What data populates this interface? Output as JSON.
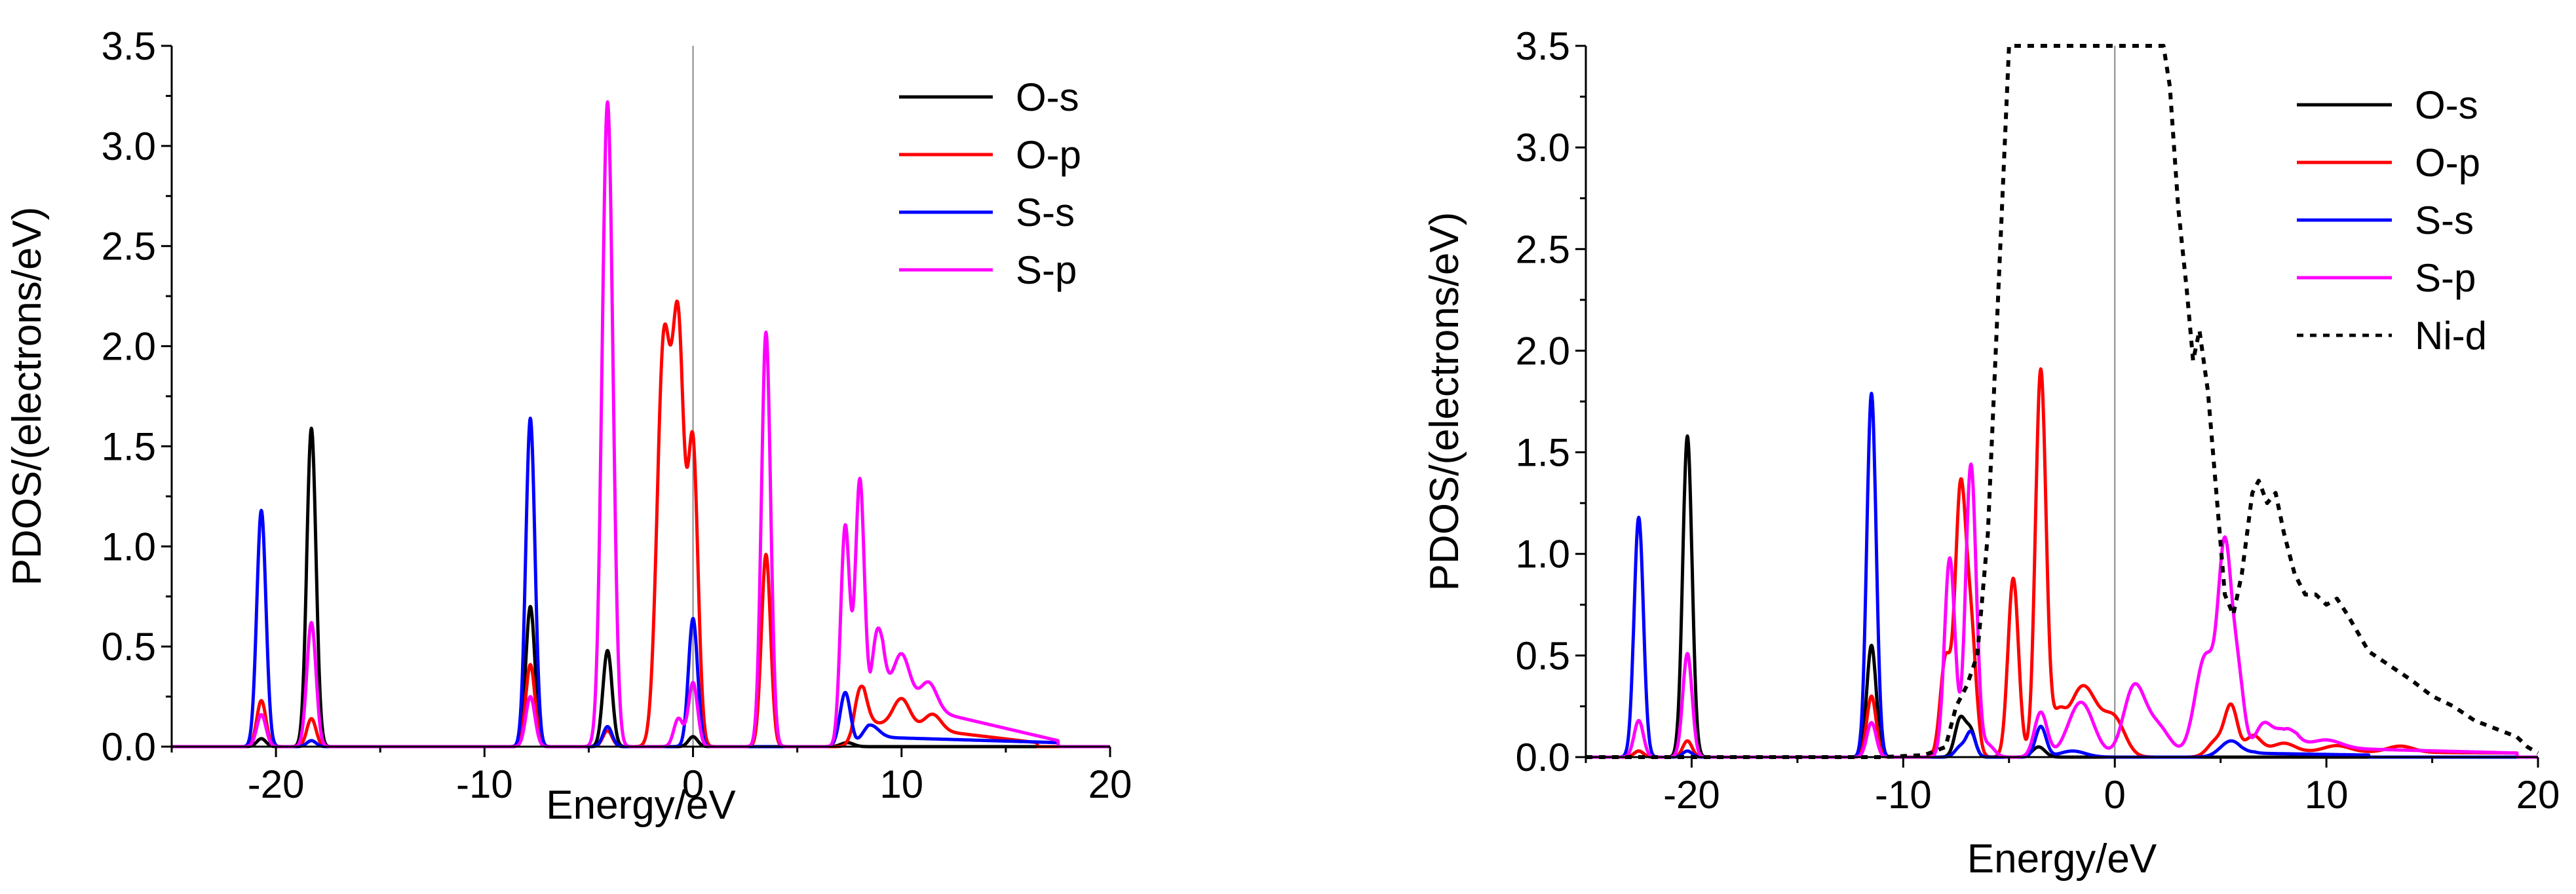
{
  "chart_data": [
    {
      "type": "line",
      "panel": "left",
      "title": "",
      "xlabel": "Energy/eV",
      "ylabel": "PDOS/(electrons/eV)",
      "xlim": [
        -25,
        20
      ],
      "ylim": [
        0,
        3.5
      ],
      "xticks": [
        -20,
        -10,
        0,
        10,
        20
      ],
      "xtick_labels": [
        "-20",
        "-10",
        "0",
        "10",
        "20"
      ],
      "yticks": [
        0,
        0.5,
        1,
        1.5,
        2,
        2.5,
        3,
        3.5
      ],
      "ytick_labels": [
        "0.0",
        "0.5",
        "1.0",
        "1.5",
        "2.0",
        "2.5",
        "3.0",
        "3.5"
      ],
      "fermi_line_x": 0,
      "legend_position": "top-right",
      "series": [
        {
          "name": "O-s",
          "color": "#000000",
          "dash": "solid",
          "peaks": [
            [
              -20.7,
              0.04,
              0.22
            ],
            [
              -18.3,
              1.59,
              0.22
            ],
            [
              -7.8,
              0.7,
              0.22
            ],
            [
              -4.1,
              0.48,
              0.22
            ],
            [
              0.0,
              0.05,
              0.22
            ],
            [
              7.4,
              0.02,
              0.3
            ]
          ],
          "tails": []
        },
        {
          "name": "O-p",
          "color": "#ff0000",
          "dash": "solid",
          "peaks": [
            [
              -20.7,
              0.23,
              0.22
            ],
            [
              -18.3,
              0.14,
              0.22
            ],
            [
              -7.8,
              0.41,
              0.22
            ],
            [
              -4.1,
              0.08,
              0.22
            ],
            [
              -1.4,
              2.0,
              0.32
            ],
            [
              -0.7,
              1.99,
              0.28
            ],
            [
              0.0,
              1.47,
              0.24
            ],
            [
              3.5,
              0.96,
              0.22
            ],
            [
              8.0,
              0.21,
              0.3
            ],
            [
              10.0,
              0.14,
              0.4
            ],
            [
              11.5,
              0.08,
              0.4
            ]
          ],
          "tails": [
            [
              7.6,
              16.5,
              0.13,
              0.02
            ]
          ]
        },
        {
          "name": "S-s",
          "color": "#0000ff",
          "dash": "solid",
          "peaks": [
            [
              -20.7,
              1.18,
              0.22
            ],
            [
              -18.3,
              0.03,
              0.22
            ],
            [
              -7.8,
              1.64,
              0.22
            ],
            [
              -4.1,
              0.1,
              0.22
            ],
            [
              0.0,
              0.64,
              0.22
            ],
            [
              7.3,
              0.27,
              0.25
            ],
            [
              8.5,
              0.06,
              0.4
            ]
          ],
          "tails": [
            [
              7.8,
              17.5,
              0.05,
              0.02
            ]
          ]
        },
        {
          "name": "S-p",
          "color": "#ff00ff",
          "dash": "solid",
          "peaks": [
            [
              -20.7,
              0.16,
              0.22
            ],
            [
              -18.3,
              0.62,
              0.22
            ],
            [
              -7.8,
              0.25,
              0.22
            ],
            [
              -4.1,
              3.22,
              0.26
            ],
            [
              -0.7,
              0.14,
              0.22
            ],
            [
              0.0,
              0.32,
              0.22
            ],
            [
              3.5,
              2.07,
              0.22
            ],
            [
              7.3,
              1.1,
              0.22
            ],
            [
              8.0,
              1.32,
              0.22
            ],
            [
              8.8,
              0.45,
              0.3
            ],
            [
              10.0,
              0.25,
              0.4
            ],
            [
              11.3,
              0.14,
              0.4
            ]
          ],
          "tails": [
            [
              8.5,
              17.5,
              0.25,
              0.03
            ]
          ]
        }
      ]
    },
    {
      "type": "line",
      "panel": "right",
      "title": "",
      "xlabel": "Energy/eV",
      "ylabel": "PDOS/(electrons/eV)",
      "xlim": [
        -25,
        20
      ],
      "ylim": [
        0,
        3.5
      ],
      "xticks": [
        -20,
        -10,
        0,
        10,
        20
      ],
      "xtick_labels": [
        "-20",
        "-10",
        "0",
        "10",
        "20"
      ],
      "yticks": [
        0,
        0.5,
        1,
        1.5,
        2,
        2.5,
        3,
        3.5
      ],
      "ytick_labels": [
        "0.0",
        "0.5",
        "1.0",
        "1.5",
        "2.0",
        "2.5",
        "3.0",
        "3.5"
      ],
      "fermi_line_x": 0,
      "legend_position": "top-right",
      "series": [
        {
          "name": "O-s",
          "color": "#000000",
          "dash": "solid",
          "peaks": [
            [
              -22.5,
              0.03,
              0.22
            ],
            [
              -20.2,
              1.58,
              0.22
            ],
            [
              -11.5,
              0.55,
              0.22
            ],
            [
              -7.3,
              0.19,
              0.25
            ],
            [
              -6.8,
              0.12,
              0.22
            ],
            [
              -3.6,
              0.05,
              0.3
            ]
          ],
          "tails": []
        },
        {
          "name": "O-p",
          "color": "#ff0000",
          "dash": "solid",
          "peaks": [
            [
              -22.5,
              0.03,
              0.22
            ],
            [
              -20.2,
              0.08,
              0.22
            ],
            [
              -11.5,
              0.3,
              0.22
            ],
            [
              -8.0,
              0.48,
              0.25
            ],
            [
              -7.3,
              1.27,
              0.25
            ],
            [
              -6.8,
              0.6,
              0.25
            ],
            [
              -4.8,
              0.88,
              0.25
            ],
            [
              -3.5,
              1.9,
              0.25
            ],
            [
              -2.7,
              0.15,
              0.3
            ],
            [
              -1.5,
              0.35,
              0.7
            ],
            [
              0.0,
              0.17,
              0.5
            ],
            [
              4.8,
              0.08,
              0.4
            ],
            [
              5.5,
              0.24,
              0.3
            ],
            [
              6.5,
              0.08,
              0.4
            ],
            [
              8.0,
              0.04,
              0.5
            ],
            [
              10.5,
              0.03,
              0.6
            ],
            [
              13.5,
              0.03,
              0.6
            ]
          ],
          "tails": [
            [
              6.0,
              19.0,
              0.03,
              0.02
            ]
          ]
        },
        {
          "name": "S-s",
          "color": "#0000ff",
          "dash": "solid",
          "peaks": [
            [
              -22.5,
              1.18,
              0.22
            ],
            [
              -20.2,
              0.03,
              0.22
            ],
            [
              -11.5,
              1.79,
              0.22
            ],
            [
              -7.3,
              0.05,
              0.25
            ],
            [
              -6.8,
              0.12,
              0.22
            ],
            [
              -3.5,
              0.15,
              0.25
            ],
            [
              -2.0,
              0.03,
              0.6
            ],
            [
              5.5,
              0.08,
              0.5
            ]
          ],
          "tails": [
            [
              6.0,
              12.0,
              0.02,
              0.01
            ]
          ]
        },
        {
          "name": "S-p",
          "color": "#ff00ff",
          "dash": "solid",
          "peaks": [
            [
              -22.5,
              0.18,
              0.22
            ],
            [
              -20.2,
              0.51,
              0.22
            ],
            [
              -11.5,
              0.17,
              0.22
            ],
            [
              -7.8,
              0.98,
              0.25
            ],
            [
              -6.8,
              1.44,
              0.25
            ],
            [
              -6.0,
              0.06,
              0.3
            ],
            [
              -3.5,
              0.22,
              0.3
            ],
            [
              -1.6,
              0.27,
              0.6
            ],
            [
              0.9,
              0.33,
              0.5
            ],
            [
              2.0,
              0.15,
              0.6
            ],
            [
              4.3,
              0.5,
              0.5
            ],
            [
              5.2,
              0.93,
              0.3
            ],
            [
              5.8,
              0.4,
              0.3
            ],
            [
              7.0,
              0.15,
              0.4
            ],
            [
              8.0,
              0.13,
              0.5
            ],
            [
              10.0,
              0.04,
              0.7
            ]
          ],
          "tails": [
            [
              8.0,
              19.0,
              0.05,
              0.02
            ]
          ]
        },
        {
          "name": "Ni-d",
          "color": "#000000",
          "dash": "dotted",
          "points": [
            [
              -25,
              0
            ],
            [
              -11,
              0
            ],
            [
              -9,
              0.01
            ],
            [
              -8,
              0.05
            ],
            [
              -7.5,
              0.25
            ],
            [
              -7,
              0.35
            ],
            [
              -6.5,
              0.5
            ],
            [
              -6,
              1.1
            ],
            [
              -5.5,
              2.3
            ],
            [
              -5.0,
              3.55
            ],
            [
              2.3,
              3.55
            ],
            [
              2.6,
              3.3
            ],
            [
              3.0,
              2.7
            ],
            [
              3.4,
              2.3
            ],
            [
              3.7,
              1.95
            ],
            [
              4.0,
              2.1
            ],
            [
              4.4,
              1.8
            ],
            [
              4.8,
              1.3
            ],
            [
              5.2,
              0.8
            ],
            [
              5.6,
              0.7
            ],
            [
              6.0,
              0.9
            ],
            [
              6.5,
              1.3
            ],
            [
              6.8,
              1.36
            ],
            [
              7.2,
              1.25
            ],
            [
              7.6,
              1.3
            ],
            [
              8.0,
              1.1
            ],
            [
              8.5,
              0.9
            ],
            [
              9.0,
              0.8
            ],
            [
              9.5,
              0.8
            ],
            [
              10.0,
              0.75
            ],
            [
              10.5,
              0.78
            ],
            [
              11.0,
              0.7
            ],
            [
              12.0,
              0.52
            ],
            [
              13.0,
              0.45
            ],
            [
              14.0,
              0.38
            ],
            [
              15.0,
              0.3
            ],
            [
              16.0,
              0.25
            ],
            [
              17.0,
              0.18
            ],
            [
              18.0,
              0.14
            ],
            [
              19.0,
              0.1
            ],
            [
              19.5,
              0.05
            ],
            [
              20.0,
              0.02
            ]
          ]
        }
      ]
    }
  ]
}
